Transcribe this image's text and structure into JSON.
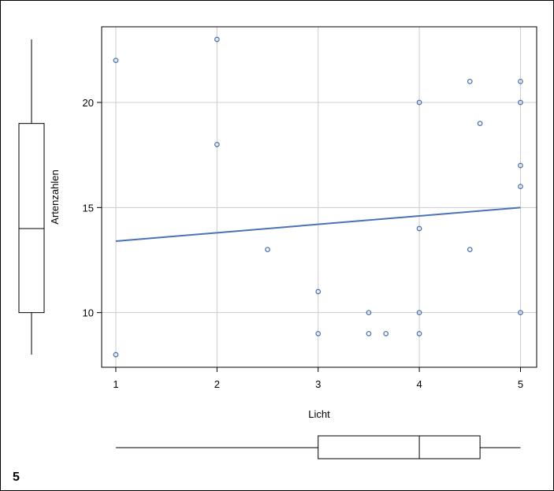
{
  "panel_label": "5",
  "colors": {
    "points": "#4a72b8",
    "fit_line": "#4a72b8",
    "grid": "#cccccc",
    "box": "#000000"
  },
  "chart_data": {
    "type": "scatter",
    "title": "",
    "xlabel": "Licht",
    "ylabel": "Artenzahlen",
    "xlim": [
      0.86,
      5.16
    ],
    "ylim": [
      7.4,
      23.6
    ],
    "xticks": [
      1,
      2,
      3,
      4,
      5
    ],
    "yticks": [
      10,
      15,
      20
    ],
    "grid": true,
    "points": [
      {
        "x": 1,
        "y": 22
      },
      {
        "x": 1,
        "y": 8
      },
      {
        "x": 2,
        "y": 23
      },
      {
        "x": 2,
        "y": 18
      },
      {
        "x": 2.5,
        "y": 13
      },
      {
        "x": 3,
        "y": 11
      },
      {
        "x": 3,
        "y": 9
      },
      {
        "x": 3.5,
        "y": 10
      },
      {
        "x": 3.5,
        "y": 9
      },
      {
        "x": 3.67,
        "y": 9
      },
      {
        "x": 4,
        "y": 20
      },
      {
        "x": 4,
        "y": 14
      },
      {
        "x": 4,
        "y": 10
      },
      {
        "x": 4,
        "y": 9
      },
      {
        "x": 4.5,
        "y": 21
      },
      {
        "x": 4.5,
        "y": 13
      },
      {
        "x": 4.6,
        "y": 19
      },
      {
        "x": 5,
        "y": 21
      },
      {
        "x": 5,
        "y": 20
      },
      {
        "x": 5,
        "y": 17
      },
      {
        "x": 5,
        "y": 16
      },
      {
        "x": 5,
        "y": 10
      }
    ],
    "fit_line": {
      "x": [
        1,
        5
      ],
      "y": [
        13.4,
        15.0
      ]
    },
    "marginal_boxplot_y": {
      "min": 8,
      "q1": 10,
      "median": 14,
      "q3": 19,
      "max": 23
    },
    "marginal_boxplot_x": {
      "min": 1,
      "q1": 3,
      "median": 4,
      "q3": 4.6,
      "max": 5
    }
  }
}
